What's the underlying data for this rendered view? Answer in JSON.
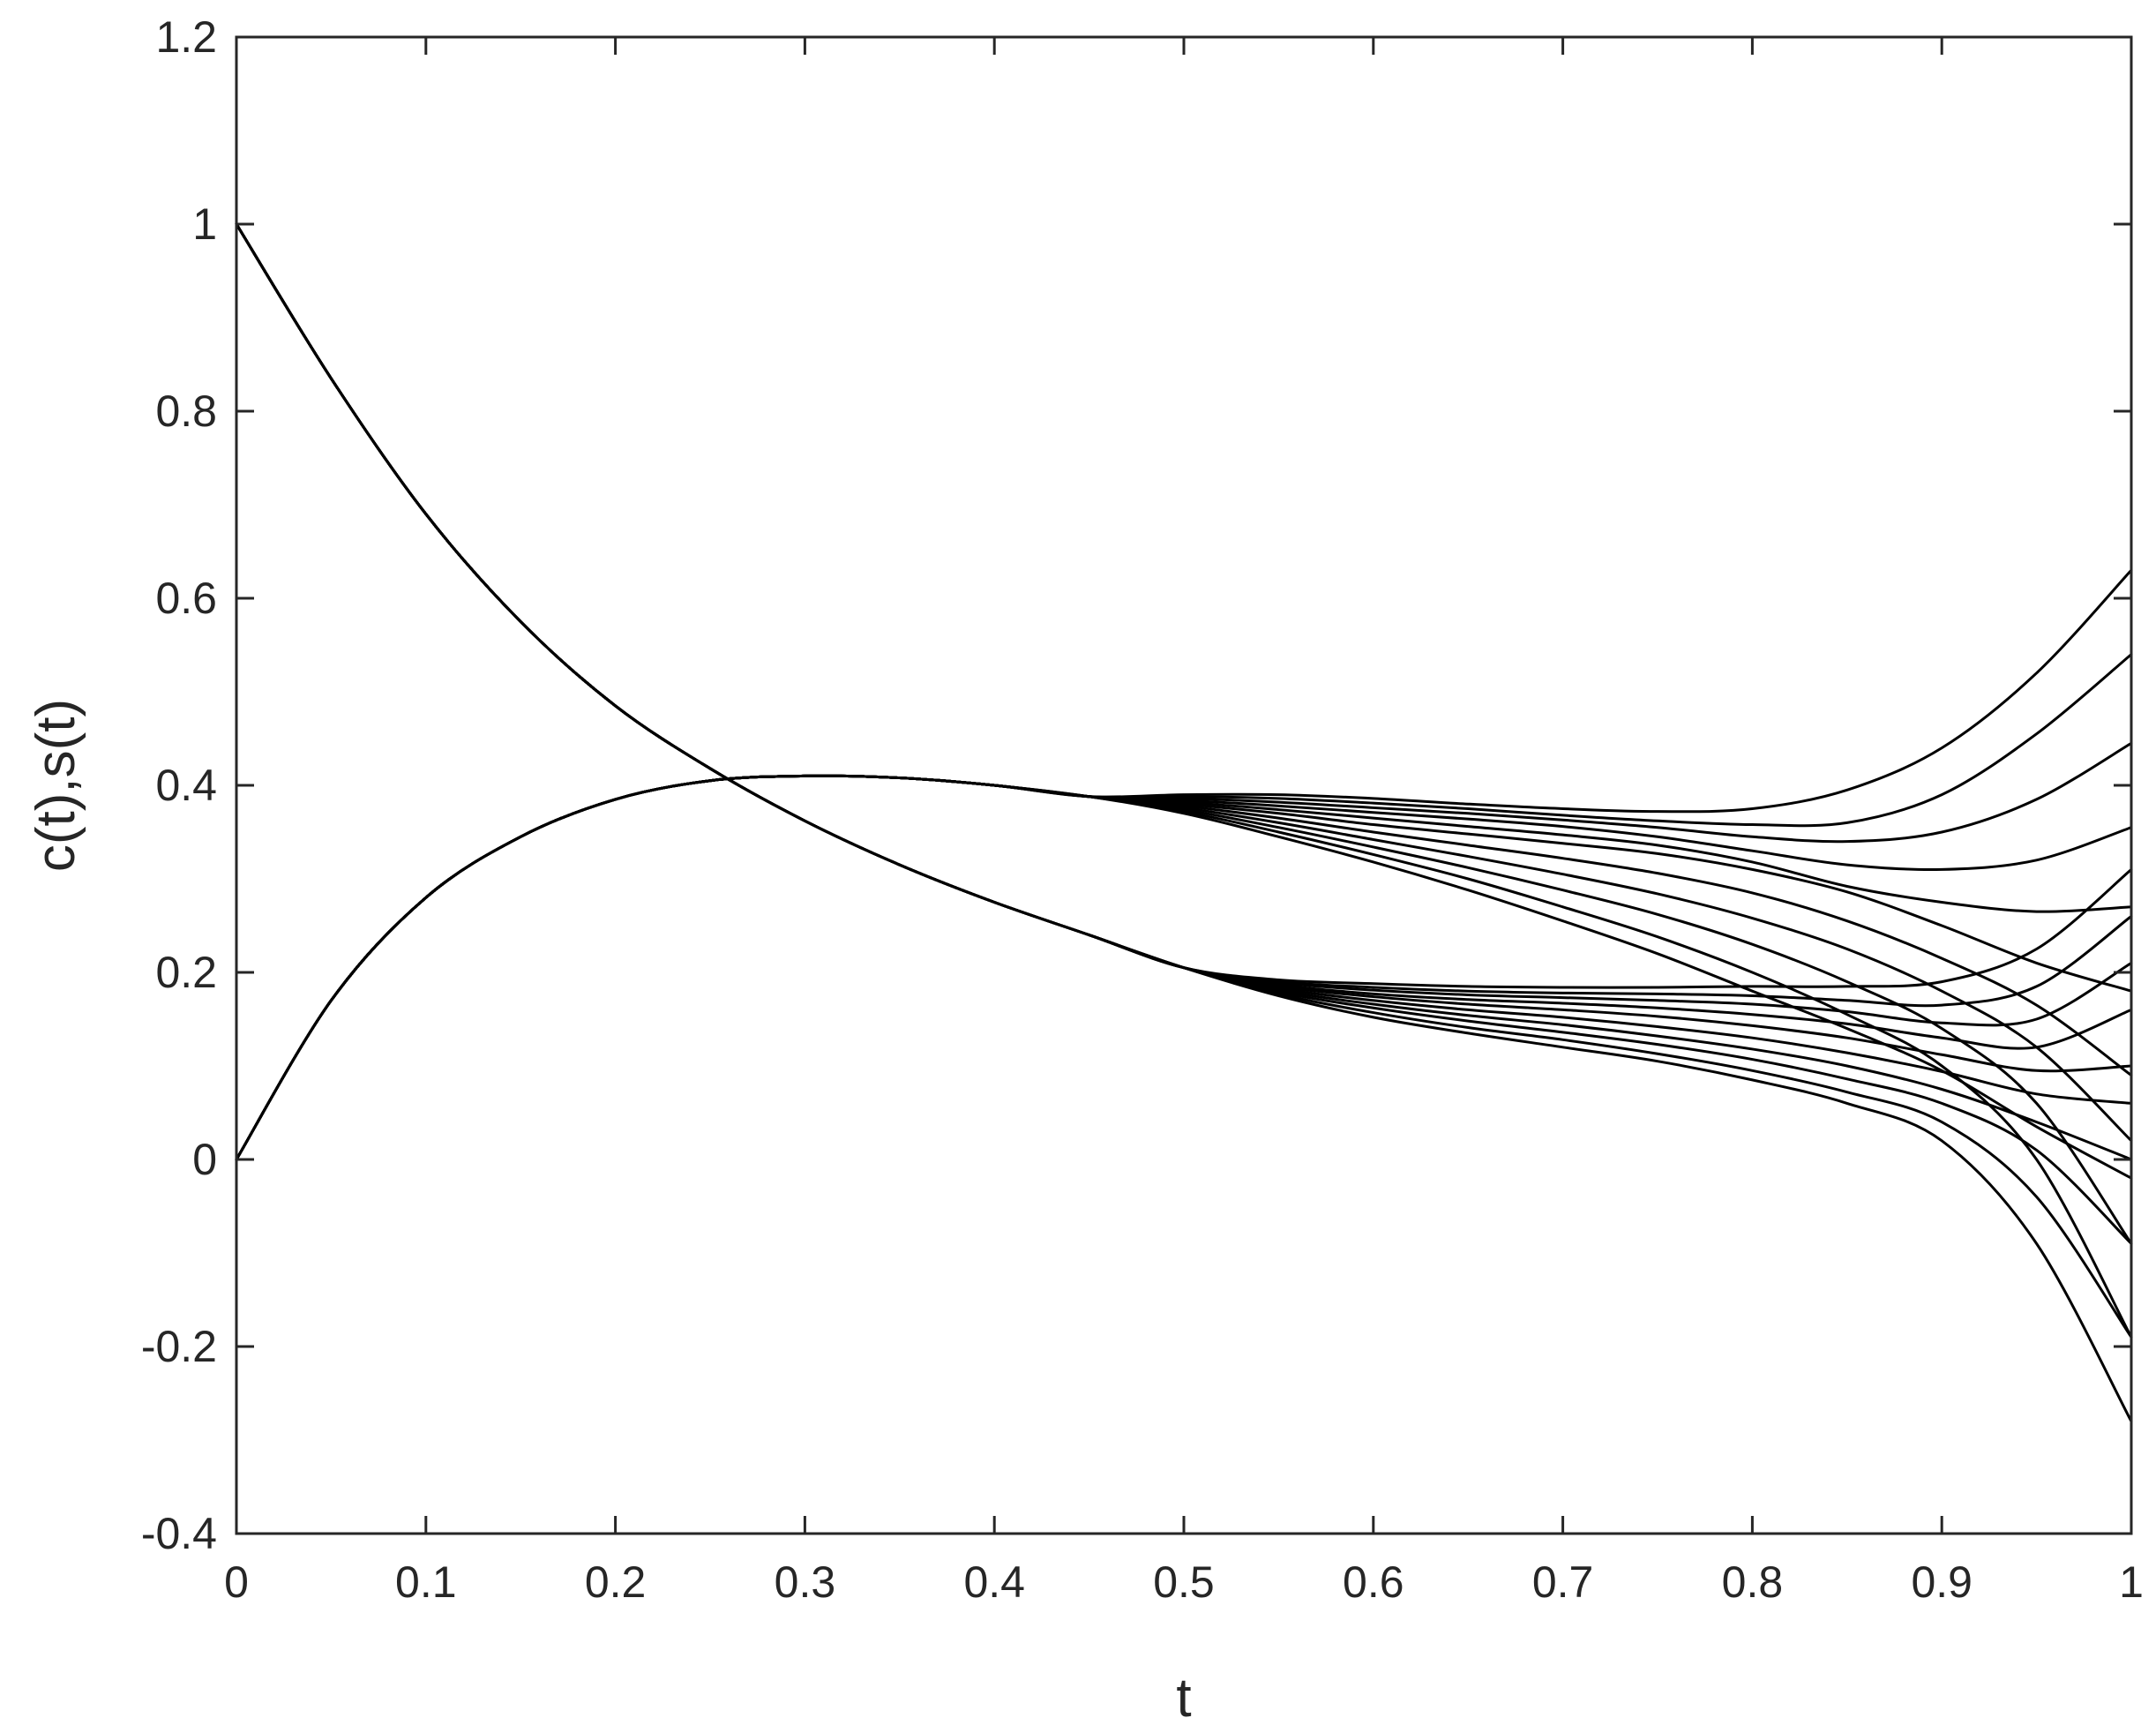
{
  "chart_data": {
    "type": "line",
    "title": "",
    "xlabel": "t",
    "ylabel": "c(t),s(t)",
    "xlim": [
      0,
      1
    ],
    "ylim": [
      -0.4,
      1.2
    ],
    "xticks": [
      0,
      0.1,
      0.2,
      0.3,
      0.4,
      0.5,
      0.6,
      0.7,
      0.8,
      0.9,
      1
    ],
    "xtick_labels": [
      "0",
      "0.1",
      "0.2",
      "0.3",
      "0.4",
      "0.5",
      "0.6",
      "0.7",
      "0.8",
      "0.9",
      "1"
    ],
    "yticks": [
      -0.4,
      -0.2,
      0,
      0.2,
      0.4,
      0.6,
      0.8,
      1,
      1.2
    ],
    "ytick_labels": [
      "-0.4",
      "-0.2",
      "0",
      "0.2",
      "0.4",
      "0.6",
      "0.8",
      "1",
      "1.2"
    ],
    "grid": false,
    "line_color": "#000000",
    "x": [
      0,
      0.05,
      0.1,
      0.15,
      0.2,
      0.25,
      0.3,
      0.35,
      0.4,
      0.45,
      0.5,
      0.55,
      0.6,
      0.65,
      0.7,
      0.75,
      0.8,
      0.85,
      0.9,
      0.95,
      1
    ],
    "series": [
      {
        "values": [
          1.0,
          0.835,
          0.69,
          0.575,
          0.485,
          0.418,
          0.362,
          0.315,
          0.275,
          0.24,
          0.205,
          0.175,
          0.152,
          0.135,
          0.12,
          0.105,
          0.085,
          0.06,
          0.02,
          -0.09,
          -0.28
        ]
      },
      {
        "values": [
          1.0,
          0.835,
          0.69,
          0.575,
          0.485,
          0.418,
          0.362,
          0.315,
          0.275,
          0.24,
          0.205,
          0.177,
          0.157,
          0.141,
          0.128,
          0.113,
          0.095,
          0.072,
          0.04,
          -0.04,
          -0.19
        ]
      },
      {
        "values": [
          1.0,
          0.835,
          0.69,
          0.575,
          0.485,
          0.418,
          0.362,
          0.315,
          0.275,
          0.24,
          0.205,
          0.179,
          0.162,
          0.148,
          0.136,
          0.123,
          0.107,
          0.086,
          0.06,
          0.01,
          -0.09
        ]
      },
      {
        "values": [
          1.0,
          0.835,
          0.69,
          0.575,
          0.485,
          0.418,
          0.362,
          0.315,
          0.275,
          0.24,
          0.205,
          0.181,
          0.166,
          0.154,
          0.144,
          0.132,
          0.118,
          0.1,
          0.075,
          0.04,
          0.0
        ]
      },
      {
        "values": [
          1.0,
          0.835,
          0.69,
          0.575,
          0.485,
          0.418,
          0.362,
          0.315,
          0.275,
          0.24,
          0.205,
          0.183,
          0.17,
          0.16,
          0.152,
          0.142,
          0.13,
          0.114,
          0.094,
          0.07,
          0.06
        ]
      },
      {
        "values": [
          1.0,
          0.835,
          0.69,
          0.575,
          0.485,
          0.418,
          0.362,
          0.315,
          0.275,
          0.24,
          0.205,
          0.185,
          0.174,
          0.166,
          0.16,
          0.153,
          0.143,
          0.13,
          0.112,
          0.095,
          0.1
        ]
      },
      {
        "values": [
          1.0,
          0.835,
          0.69,
          0.575,
          0.485,
          0.418,
          0.362,
          0.315,
          0.275,
          0.24,
          0.205,
          0.187,
          0.177,
          0.171,
          0.167,
          0.162,
          0.155,
          0.145,
          0.13,
          0.12,
          0.16
        ]
      },
      {
        "values": [
          1.0,
          0.835,
          0.69,
          0.575,
          0.485,
          0.418,
          0.362,
          0.315,
          0.275,
          0.24,
          0.205,
          0.189,
          0.181,
          0.176,
          0.173,
          0.17,
          0.166,
          0.158,
          0.146,
          0.15,
          0.21
        ]
      },
      {
        "values": [
          1.0,
          0.835,
          0.69,
          0.575,
          0.485,
          0.418,
          0.362,
          0.315,
          0.275,
          0.24,
          0.205,
          0.19,
          0.184,
          0.18,
          0.178,
          0.177,
          0.175,
          0.17,
          0.165,
          0.185,
          0.26
        ]
      },
      {
        "values": [
          1.0,
          0.835,
          0.69,
          0.575,
          0.485,
          0.418,
          0.362,
          0.315,
          0.275,
          0.24,
          0.205,
          0.192,
          0.188,
          0.185,
          0.184,
          0.184,
          0.185,
          0.185,
          0.19,
          0.225,
          0.31
        ]
      },
      {
        "values": [
          0,
          0.17,
          0.28,
          0.345,
          0.385,
          0.405,
          0.41,
          0.408,
          0.4,
          0.388,
          0.37,
          0.345,
          0.318,
          0.288,
          0.255,
          0.22,
          0.18,
          0.14,
          0.095,
          0.035,
          -0.02
        ]
      },
      {
        "values": [
          0,
          0.17,
          0.28,
          0.345,
          0.385,
          0.405,
          0.41,
          0.408,
          0.4,
          0.388,
          0.372,
          0.35,
          0.326,
          0.3,
          0.27,
          0.238,
          0.2,
          0.155,
          0.1,
          0.0,
          -0.19
        ]
      },
      {
        "values": [
          0,
          0.17,
          0.28,
          0.345,
          0.385,
          0.405,
          0.41,
          0.408,
          0.4,
          0.388,
          0.374,
          0.355,
          0.334,
          0.312,
          0.288,
          0.262,
          0.23,
          0.19,
          0.14,
          0.06,
          -0.09
        ]
      },
      {
        "values": [
          0,
          0.17,
          0.28,
          0.345,
          0.385,
          0.405,
          0.41,
          0.408,
          0.4,
          0.388,
          0.376,
          0.36,
          0.342,
          0.324,
          0.305,
          0.284,
          0.258,
          0.225,
          0.18,
          0.12,
          0.02
        ]
      },
      {
        "values": [
          0,
          0.17,
          0.28,
          0.345,
          0.385,
          0.405,
          0.41,
          0.408,
          0.4,
          0.388,
          0.378,
          0.365,
          0.35,
          0.336,
          0.322,
          0.306,
          0.285,
          0.255,
          0.215,
          0.165,
          0.09
        ]
      },
      {
        "values": [
          0,
          0.17,
          0.28,
          0.345,
          0.385,
          0.405,
          0.41,
          0.408,
          0.4,
          0.388,
          0.38,
          0.37,
          0.358,
          0.348,
          0.338,
          0.327,
          0.31,
          0.286,
          0.25,
          0.21,
          0.18
        ]
      },
      {
        "values": [
          0,
          0.17,
          0.28,
          0.345,
          0.385,
          0.405,
          0.41,
          0.408,
          0.4,
          0.388,
          0.382,
          0.374,
          0.365,
          0.356,
          0.347,
          0.336,
          0.318,
          0.292,
          0.275,
          0.265,
          0.27
        ]
      },
      {
        "values": [
          0,
          0.17,
          0.28,
          0.345,
          0.385,
          0.405,
          0.41,
          0.408,
          0.4,
          0.388,
          0.384,
          0.378,
          0.371,
          0.364,
          0.356,
          0.345,
          0.33,
          0.315,
          0.31,
          0.32,
          0.355
        ]
      },
      {
        "values": [
          0,
          0.17,
          0.28,
          0.345,
          0.385,
          0.405,
          0.41,
          0.408,
          0.4,
          0.388,
          0.386,
          0.382,
          0.376,
          0.37,
          0.363,
          0.355,
          0.345,
          0.34,
          0.35,
          0.385,
          0.445
        ]
      },
      {
        "values": [
          0,
          0.17,
          0.28,
          0.345,
          0.385,
          0.405,
          0.41,
          0.408,
          0.4,
          0.388,
          0.388,
          0.386,
          0.381,
          0.375,
          0.368,
          0.362,
          0.358,
          0.36,
          0.39,
          0.455,
          0.54
        ]
      },
      {
        "values": [
          0,
          0.17,
          0.28,
          0.345,
          0.385,
          0.405,
          0.41,
          0.408,
          0.4,
          0.388,
          0.39,
          0.39,
          0.386,
          0.38,
          0.375,
          0.372,
          0.375,
          0.395,
          0.44,
          0.52,
          0.63
        ]
      }
    ]
  }
}
